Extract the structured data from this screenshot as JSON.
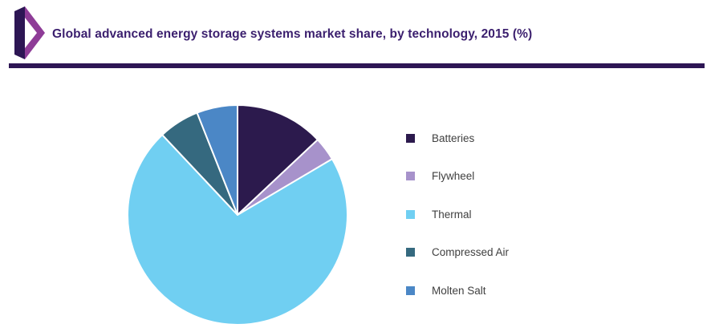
{
  "header": {
    "title": "Global advanced energy storage systems market share, by technology, 2015 (%)",
    "accent_color": "#2d1654",
    "title_color": "#3b1f6e"
  },
  "chart_data": {
    "type": "pie",
    "title": "Global advanced energy storage systems market share, by technology, 2015 (%)",
    "unit": "%",
    "legend_position": "right",
    "slices": [
      {
        "label": "Batteries",
        "value": 13,
        "color": "#2c1a4d"
      },
      {
        "label": "Flywheel",
        "value": 3.5,
        "color": "#a792cb"
      },
      {
        "label": "Thermal",
        "value": 71.5,
        "color": "#70cff2"
      },
      {
        "label": "Compressed Air",
        "value": 6,
        "color": "#35697f"
      },
      {
        "label": "Molten Salt",
        "value": 6,
        "color": "#4b87c6"
      }
    ]
  }
}
